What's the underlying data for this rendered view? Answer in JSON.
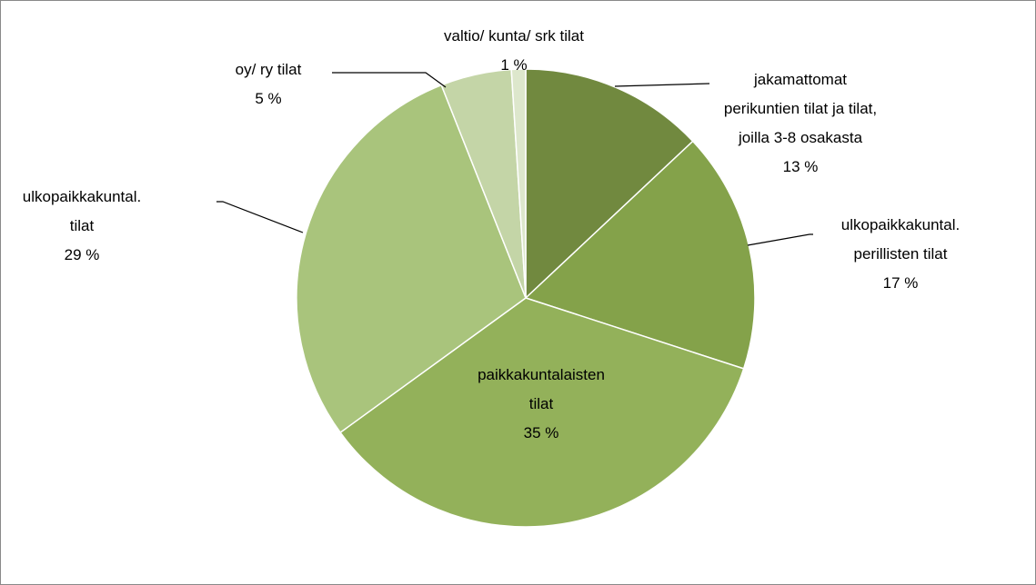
{
  "chart_data": {
    "type": "pie",
    "categories": [
      "jakamattomat perikuntien tilat ja tilat, joilla 3-8 osakasta",
      "ulkopaikkakuntal. perillisten tilat",
      "paikkakuntalaisten tilat",
      "ulkopaikkakuntal. tilat",
      "oy/ ry tilat",
      "valtio/ kunta/ srk tilat"
    ],
    "values": [
      13,
      17,
      35,
      29,
      5,
      1
    ],
    "value_labels": [
      "13 %",
      "17 %",
      "35 %",
      "29 %",
      "5 %",
      "1 %"
    ],
    "colors": [
      "#71893f",
      "#84a24a",
      "#93b15a",
      "#a9c47c",
      "#c4d5a7",
      "#dde7cc"
    ]
  }
}
